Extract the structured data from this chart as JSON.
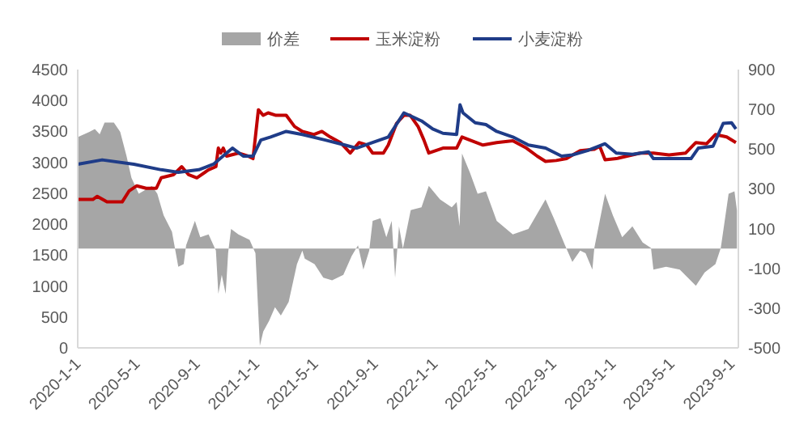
{
  "chart_data": {
    "type": "line",
    "legend": "top",
    "y2lim": [
      -500,
      900
    ],
    "y2ticks": [
      -500,
      -300,
      -100,
      100,
      300,
      500,
      700,
      900
    ],
    "ylim": [
      0,
      4500
    ],
    "yticks": [
      0,
      500,
      1000,
      1500,
      2000,
      2500,
      3000,
      3500,
      4000,
      4500
    ],
    "xlim": [
      "2020-01-01",
      "2023-09-15"
    ],
    "xticks": [
      {
        "value": "2020-01-01",
        "label": "2020-1-1"
      },
      {
        "value": "2020-05-01",
        "label": "2020-5-1"
      },
      {
        "value": "2020-09-01",
        "label": "2020-9-1"
      },
      {
        "value": "2021-01-01",
        "label": "2021-1-1"
      },
      {
        "value": "2021-05-01",
        "label": "2021-5-1"
      },
      {
        "value": "2021-09-01",
        "label": "2021-9-1"
      },
      {
        "value": "2022-01-01",
        "label": "2022-1-1"
      },
      {
        "value": "2022-05-01",
        "label": "2022-5-1"
      },
      {
        "value": "2022-09-01",
        "label": "2022-9-1"
      },
      {
        "value": "2023-01-01",
        "label": "2023-1-1"
      },
      {
        "value": "2023-05-01",
        "label": "2023-5-1"
      },
      {
        "value": "2023-09-01",
        "label": "2023-9-1"
      }
    ],
    "series": [
      {
        "name": "价差",
        "type": "area",
        "axis": "y2",
        "color": "#a6a6a6",
        "x": [
          "2020-01-01",
          "2020-01-25",
          "2020-02-05",
          "2020-02-15",
          "2020-02-25",
          "2020-03-15",
          "2020-03-28",
          "2020-04-10",
          "2020-04-20",
          "2020-05-05",
          "2020-06-01",
          "2020-06-12",
          "2020-06-25",
          "2020-07-12",
          "2020-07-25",
          "2020-08-05",
          "2020-08-10",
          "2020-08-28",
          "2020-09-08",
          "2020-09-25",
          "2020-10-10",
          "2020-10-15",
          "2020-10-22",
          "2020-10-30",
          "2020-11-04",
          "2020-11-10",
          "2020-11-25",
          "2020-12-18",
          "2020-12-30",
          "2021-01-08",
          "2021-01-15",
          "2021-01-27",
          "2021-02-08",
          "2021-02-20",
          "2021-03-08",
          "2021-03-25",
          "2021-04-05",
          "2021-04-10",
          "2021-04-30",
          "2021-05-18",
          "2021-06-05",
          "2021-06-28",
          "2021-07-15",
          "2021-07-28",
          "2021-08-08",
          "2021-08-20",
          "2021-08-27",
          "2021-09-12",
          "2021-09-24",
          "2021-10-05",
          "2021-10-12",
          "2021-10-20",
          "2021-10-28",
          "2021-11-13",
          "2021-12-05",
          "2021-12-20",
          "2022-01-12",
          "2022-02-05",
          "2022-02-15",
          "2022-02-21",
          "2022-02-26",
          "2022-03-14",
          "2022-03-30",
          "2022-04-16",
          "2022-05-08",
          "2022-06-10",
          "2022-07-12",
          "2022-08-16",
          "2022-09-02",
          "2022-09-25",
          "2022-10-10",
          "2022-10-26",
          "2022-11-06",
          "2022-11-20",
          "2022-11-24",
          "2022-12-16",
          "2023-01-01",
          "2023-01-20",
          "2023-02-10",
          "2023-03-03",
          "2023-03-20",
          "2023-03-25",
          "2023-04-20",
          "2023-05-18",
          "2023-06-20",
          "2023-07-08",
          "2023-07-30",
          "2023-08-10",
          "2023-08-26",
          "2023-09-07",
          "2023-09-12"
        ],
        "values": [
          560,
          587,
          601,
          574,
          633,
          633,
          587,
          465,
          356,
          275,
          315,
          275,
          166,
          84,
          -92,
          -79,
          16,
          139,
          57,
          71,
          -11,
          -228,
          -133,
          -228,
          -24,
          98,
          71,
          43,
          -24,
          -490,
          -418,
          -364,
          -296,
          -337,
          -269,
          -79,
          -11,
          -51,
          -79,
          -147,
          -160,
          -133,
          -38,
          16,
          -106,
          -11,
          139,
          152,
          57,
          139,
          -147,
          111,
          0,
          193,
          207,
          315,
          247,
          207,
          234,
          111,
          478,
          383,
          275,
          288,
          139,
          71,
          98,
          247,
          152,
          16,
          -68,
          -11,
          -24,
          -106,
          3,
          275,
          166,
          57,
          111,
          30,
          3,
          -106,
          -92,
          -106,
          -188,
          -120,
          -79,
          3,
          275,
          288,
          193
        ]
      },
      {
        "name": "玉米淀粉",
        "color": "#c00000",
        "x": [
          "2020-01-01",
          "2020-02-01",
          "2020-02-10",
          "2020-03-01",
          "2020-04-01",
          "2020-04-15",
          "2020-05-01",
          "2020-05-20",
          "2020-06-10",
          "2020-06-20",
          "2020-07-15",
          "2020-08-01",
          "2020-08-15",
          "2020-09-01",
          "2020-09-25",
          "2020-10-10",
          "2020-10-15",
          "2020-10-20",
          "2020-10-25",
          "2020-11-01",
          "2020-11-25",
          "2020-12-15",
          "2020-12-25",
          "2021-01-05",
          "2021-01-15",
          "2021-01-25",
          "2021-02-10",
          "2021-03-03",
          "2021-03-20",
          "2021-04-05",
          "2021-04-28",
          "2021-05-15",
          "2021-06-01",
          "2021-06-22",
          "2021-07-12",
          "2021-07-30",
          "2021-08-15",
          "2021-08-27",
          "2021-09-18",
          "2021-09-28",
          "2021-10-15",
          "2021-10-30",
          "2021-11-12",
          "2021-11-28",
          "2021-12-10",
          "2021-12-20",
          "2022-01-18",
          "2022-02-15",
          "2022-02-26",
          "2022-03-14",
          "2022-04-10",
          "2022-05-08",
          "2022-06-10",
          "2022-07-08",
          "2022-07-30",
          "2022-08-16",
          "2022-09-07",
          "2022-09-28",
          "2022-10-26",
          "2022-11-24",
          "2022-12-05",
          "2022-12-16",
          "2023-01-08",
          "2023-01-30",
          "2023-02-26",
          "2023-03-25",
          "2023-04-26",
          "2023-05-30",
          "2023-06-20",
          "2023-07-12",
          "2023-07-30",
          "2023-08-22",
          "2023-09-10"
        ],
        "values": [
          2400,
          2400,
          2450,
          2360,
          2360,
          2535,
          2620,
          2580,
          2580,
          2750,
          2800,
          2930,
          2800,
          2750,
          2880,
          2930,
          3230,
          3150,
          3230,
          3100,
          3150,
          3100,
          3060,
          3850,
          3760,
          3800,
          3760,
          3760,
          3580,
          3500,
          3450,
          3500,
          3410,
          3320,
          3150,
          3320,
          3280,
          3150,
          3150,
          3280,
          3630,
          3760,
          3760,
          3580,
          3360,
          3150,
          3230,
          3230,
          3410,
          3360,
          3280,
          3320,
          3350,
          3230,
          3100,
          3015,
          3030,
          3060,
          3190,
          3210,
          3260,
          3040,
          3060,
          3100,
          3150,
          3150,
          3120,
          3150,
          3320,
          3300,
          3450,
          3410,
          3320
        ]
      },
      {
        "name": "小麦淀粉",
        "color": "#1f3c88",
        "x": [
          "2020-01-01",
          "2020-02-20",
          "2020-04-25",
          "2020-06-20",
          "2020-07-25",
          "2020-09-05",
          "2020-10-05",
          "2020-11-13",
          "2020-12-05",
          "2020-12-25",
          "2021-01-10",
          "2021-01-30",
          "2021-03-03",
          "2021-04-05",
          "2021-05-22",
          "2021-07-01",
          "2021-07-25",
          "2021-08-27",
          "2021-09-28",
          "2021-10-30",
          "2021-12-05",
          "2021-12-28",
          "2022-01-18",
          "2022-02-15",
          "2022-02-22",
          "2022-02-28",
          "2022-03-25",
          "2022-04-16",
          "2022-05-08",
          "2022-06-10",
          "2022-07-12",
          "2022-08-16",
          "2022-09-18",
          "2022-10-10",
          "2022-11-10",
          "2022-12-16",
          "2023-01-08",
          "2023-02-10",
          "2023-03-15",
          "2023-03-25",
          "2023-06-10",
          "2023-06-25",
          "2023-07-25",
          "2023-08-15",
          "2023-09-01",
          "2023-09-10"
        ],
        "values": [
          2970,
          3040,
          2970,
          2880,
          2840,
          2880,
          2970,
          3230,
          3100,
          3100,
          3360,
          3410,
          3500,
          3450,
          3360,
          3280,
          3230,
          3320,
          3410,
          3800,
          3670,
          3540,
          3470,
          3450,
          3930,
          3800,
          3640,
          3610,
          3500,
          3410,
          3280,
          3230,
          3100,
          3120,
          3190,
          3300,
          3150,
          3130,
          3170,
          3060,
          3060,
          3230,
          3260,
          3630,
          3640,
          3540
        ]
      }
    ]
  }
}
